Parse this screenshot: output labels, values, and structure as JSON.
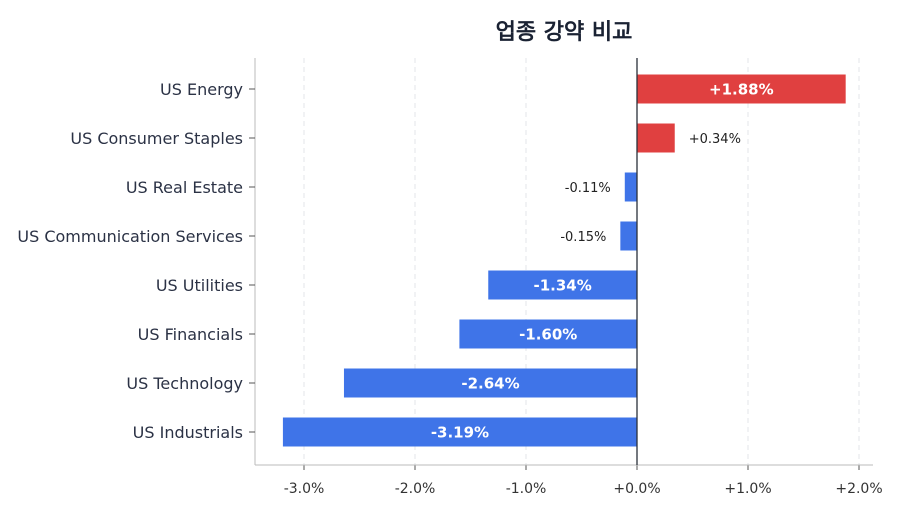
{
  "chart_data": {
    "type": "bar",
    "orientation": "horizontal",
    "title": "업종 강약 비교",
    "xlabel": "",
    "ylabel": "",
    "xlim": [
      -3.2,
      2.0
    ],
    "grid": "vertical dashed",
    "categories": [
      "US Energy",
      "US Consumer Staples",
      "US Real Estate",
      "US Communication Services",
      "US Utilities",
      "US Financials",
      "US Technology",
      "US Industrials"
    ],
    "values": [
      1.88,
      0.34,
      -0.11,
      -0.15,
      -1.34,
      -1.6,
      -2.64,
      -3.19
    ],
    "value_labels": [
      "+1.88%",
      "+0.34%",
      "-0.11%",
      "-0.15%",
      "-1.34%",
      "-1.60%",
      "-2.64%",
      "-3.19%"
    ],
    "x_ticks": [
      -3,
      -2,
      -1,
      0,
      1,
      2
    ],
    "x_tick_labels": [
      "-3.0%",
      "-2.0%",
      "-1.0%",
      "+0.0%",
      "+1.0%",
      "+2.0%"
    ],
    "colors": {
      "positive": "#e04040",
      "negative": "#3f74e8"
    }
  }
}
